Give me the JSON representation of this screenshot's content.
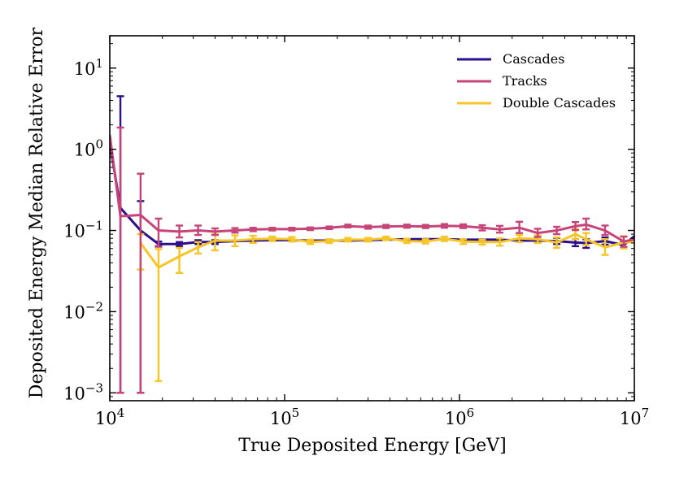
{
  "chart_data": {
    "type": "line",
    "xscale": "log",
    "yscale": "log",
    "xlabel": "True Deposited Energy [GeV]",
    "ylabel": "Deposited Energy Median Relative Error",
    "xlim": [
      10000,
      10000000
    ],
    "ylim": [
      0.0008,
      25
    ],
    "x_ticks": [
      {
        "value": 10000,
        "base": "10",
        "exp": "4"
      },
      {
        "value": 100000,
        "base": "10",
        "exp": "5"
      },
      {
        "value": 1000000,
        "base": "10",
        "exp": "6"
      },
      {
        "value": 10000000,
        "base": "10",
        "exp": "7"
      }
    ],
    "y_ticks": [
      {
        "value": 0.001,
        "base": "10",
        "exp": "−3"
      },
      {
        "value": 0.01,
        "base": "10",
        "exp": "−2"
      },
      {
        "value": 0.1,
        "base": "10",
        "exp": "−1"
      },
      {
        "value": 1,
        "base": "10",
        "exp": "0"
      },
      {
        "value": 10,
        "base": "10",
        "exp": "1"
      }
    ],
    "legend_position": "top-right",
    "series": [
      {
        "name": "Cascades",
        "color": "#2d0f8c",
        "points": [
          {
            "x": 10000,
            "y": 1.2
          },
          {
            "x": 11500,
            "y": 0.19,
            "lo": 0.001,
            "hi": 4.5
          },
          {
            "x": 15000,
            "y": 0.1,
            "lo": 0.001,
            "hi": 0.23
          },
          {
            "x": 19000,
            "y": 0.068,
            "lo": 0.064,
            "hi": 0.073
          },
          {
            "x": 25000,
            "y": 0.068,
            "lo": 0.064,
            "hi": 0.072
          },
          {
            "x": 32000,
            "y": 0.072,
            "lo": 0.068,
            "hi": 0.076
          },
          {
            "x": 40000,
            "y": 0.072,
            "lo": 0.068,
            "hi": 0.076
          },
          {
            "x": 52000,
            "y": 0.074
          },
          {
            "x": 66000,
            "y": 0.075
          },
          {
            "x": 85000,
            "y": 0.076
          },
          {
            "x": 110000,
            "y": 0.076
          },
          {
            "x": 140000,
            "y": 0.075
          },
          {
            "x": 180000,
            "y": 0.075
          },
          {
            "x": 230000,
            "y": 0.075
          },
          {
            "x": 300000,
            "y": 0.076
          },
          {
            "x": 380000,
            "y": 0.077
          },
          {
            "x": 500000,
            "y": 0.078
          },
          {
            "x": 640000,
            "y": 0.078
          },
          {
            "x": 820000,
            "y": 0.078
          },
          {
            "x": 1050000,
            "y": 0.077
          },
          {
            "x": 1350000,
            "y": 0.077
          },
          {
            "x": 1700000,
            "y": 0.077
          },
          {
            "x": 2200000,
            "y": 0.075
          },
          {
            "x": 2800000,
            "y": 0.075
          },
          {
            "x": 3600000,
            "y": 0.074,
            "lo": 0.068,
            "hi": 0.081
          },
          {
            "x": 4600000,
            "y": 0.071,
            "lo": 0.064,
            "hi": 0.078
          },
          {
            "x": 5300000,
            "y": 0.07,
            "lo": 0.061,
            "hi": 0.078
          },
          {
            "x": 6800000,
            "y": 0.074,
            "lo": 0.067,
            "hi": 0.082
          },
          {
            "x": 8700000,
            "y": 0.066,
            "lo": 0.061,
            "hi": 0.072
          },
          {
            "x": 10000000,
            "y": 0.085
          }
        ]
      },
      {
        "name": "Tracks",
        "color": "#c64478",
        "points": [
          {
            "x": 10000,
            "y": 1.5
          },
          {
            "x": 11500,
            "y": 0.15,
            "lo": 0.001,
            "hi": 1.85
          },
          {
            "x": 15000,
            "y": 0.155,
            "lo": 0.001,
            "hi": 0.5
          },
          {
            "x": 19000,
            "y": 0.1,
            "lo": 0.063,
            "hi": 0.14
          },
          {
            "x": 25000,
            "y": 0.097,
            "lo": 0.082,
            "hi": 0.115
          },
          {
            "x": 32000,
            "y": 0.1,
            "lo": 0.088,
            "hi": 0.115
          },
          {
            "x": 40000,
            "y": 0.097,
            "lo": 0.088,
            "hi": 0.106
          },
          {
            "x": 52000,
            "y": 0.1,
            "lo": 0.094,
            "hi": 0.107
          },
          {
            "x": 66000,
            "y": 0.103,
            "lo": 0.098,
            "hi": 0.108
          },
          {
            "x": 85000,
            "y": 0.104,
            "lo": 0.1,
            "hi": 0.108
          },
          {
            "x": 110000,
            "y": 0.104,
            "lo": 0.1,
            "hi": 0.108
          },
          {
            "x": 140000,
            "y": 0.105,
            "lo": 0.101,
            "hi": 0.109
          },
          {
            "x": 180000,
            "y": 0.108,
            "lo": 0.104,
            "hi": 0.112
          },
          {
            "x": 230000,
            "y": 0.113,
            "lo": 0.109,
            "hi": 0.118
          },
          {
            "x": 300000,
            "y": 0.11,
            "lo": 0.105,
            "hi": 0.115
          },
          {
            "x": 380000,
            "y": 0.112,
            "lo": 0.107,
            "hi": 0.117
          },
          {
            "x": 500000,
            "y": 0.113,
            "lo": 0.108,
            "hi": 0.118
          },
          {
            "x": 640000,
            "y": 0.112,
            "lo": 0.107,
            "hi": 0.117
          },
          {
            "x": 820000,
            "y": 0.114,
            "lo": 0.108,
            "hi": 0.12
          },
          {
            "x": 1050000,
            "y": 0.113,
            "lo": 0.107,
            "hi": 0.119
          },
          {
            "x": 1350000,
            "y": 0.108,
            "lo": 0.1,
            "hi": 0.116
          },
          {
            "x": 1700000,
            "y": 0.103,
            "lo": 0.094,
            "hi": 0.114
          },
          {
            "x": 2200000,
            "y": 0.108,
            "lo": 0.093,
            "hi": 0.128
          },
          {
            "x": 2800000,
            "y": 0.093,
            "lo": 0.083,
            "hi": 0.105
          },
          {
            "x": 3600000,
            "y": 0.1,
            "lo": 0.09,
            "hi": 0.111
          },
          {
            "x": 4600000,
            "y": 0.113,
            "lo": 0.101,
            "hi": 0.127
          },
          {
            "x": 5300000,
            "y": 0.118,
            "lo": 0.103,
            "hi": 0.14
          },
          {
            "x": 6800000,
            "y": 0.1,
            "lo": 0.088,
            "hi": 0.115
          },
          {
            "x": 8700000,
            "y": 0.073,
            "lo": 0.063,
            "hi": 0.084
          },
          {
            "x": 10000000,
            "y": 0.078
          }
        ]
      },
      {
        "name": "Double Cascades",
        "color": "#f7c528",
        "points": [
          {
            "x": 15000,
            "y": 0.07,
            "lo": 0.033,
            "hi": 0.09
          },
          {
            "x": 19000,
            "y": 0.035,
            "lo": 0.0014,
            "hi": 0.059
          },
          {
            "x": 25000,
            "y": 0.048,
            "lo": 0.03,
            "hi": 0.061
          },
          {
            "x": 32000,
            "y": 0.062,
            "lo": 0.052,
            "hi": 0.072
          },
          {
            "x": 40000,
            "y": 0.075,
            "lo": 0.057,
            "hi": 0.09
          },
          {
            "x": 52000,
            "y": 0.075,
            "lo": 0.064,
            "hi": 0.087
          },
          {
            "x": 66000,
            "y": 0.078,
            "lo": 0.07,
            "hi": 0.086
          },
          {
            "x": 85000,
            "y": 0.079,
            "lo": 0.074,
            "hi": 0.084
          },
          {
            "x": 110000,
            "y": 0.078,
            "lo": 0.073,
            "hi": 0.083
          },
          {
            "x": 140000,
            "y": 0.072,
            "lo": 0.068,
            "hi": 0.077
          },
          {
            "x": 180000,
            "y": 0.074,
            "lo": 0.07,
            "hi": 0.078
          },
          {
            "x": 230000,
            "y": 0.077,
            "lo": 0.073,
            "hi": 0.081
          },
          {
            "x": 300000,
            "y": 0.077,
            "lo": 0.073,
            "hi": 0.081
          },
          {
            "x": 380000,
            "y": 0.08,
            "lo": 0.076,
            "hi": 0.084
          },
          {
            "x": 500000,
            "y": 0.074,
            "lo": 0.07,
            "hi": 0.079
          },
          {
            "x": 640000,
            "y": 0.073,
            "lo": 0.069,
            "hi": 0.078
          },
          {
            "x": 820000,
            "y": 0.079,
            "lo": 0.074,
            "hi": 0.084
          },
          {
            "x": 1050000,
            "y": 0.073,
            "lo": 0.068,
            "hi": 0.078
          },
          {
            "x": 1350000,
            "y": 0.072,
            "lo": 0.067,
            "hi": 0.077
          },
          {
            "x": 1700000,
            "y": 0.072,
            "lo": 0.065,
            "hi": 0.08
          },
          {
            "x": 2200000,
            "y": 0.08,
            "lo": 0.072,
            "hi": 0.088
          },
          {
            "x": 2800000,
            "y": 0.078,
            "lo": 0.07,
            "hi": 0.087
          },
          {
            "x": 3600000,
            "y": 0.071,
            "lo": 0.061,
            "hi": 0.082
          },
          {
            "x": 4600000,
            "y": 0.09,
            "lo": 0.078,
            "hi": 0.104
          },
          {
            "x": 5300000,
            "y": 0.078,
            "lo": 0.066,
            "hi": 0.093
          },
          {
            "x": 6800000,
            "y": 0.062,
            "lo": 0.05,
            "hi": 0.078
          },
          {
            "x": 8700000,
            "y": 0.071,
            "lo": 0.06,
            "hi": 0.085
          },
          {
            "x": 10000000,
            "y": 0.072
          }
        ]
      }
    ]
  }
}
